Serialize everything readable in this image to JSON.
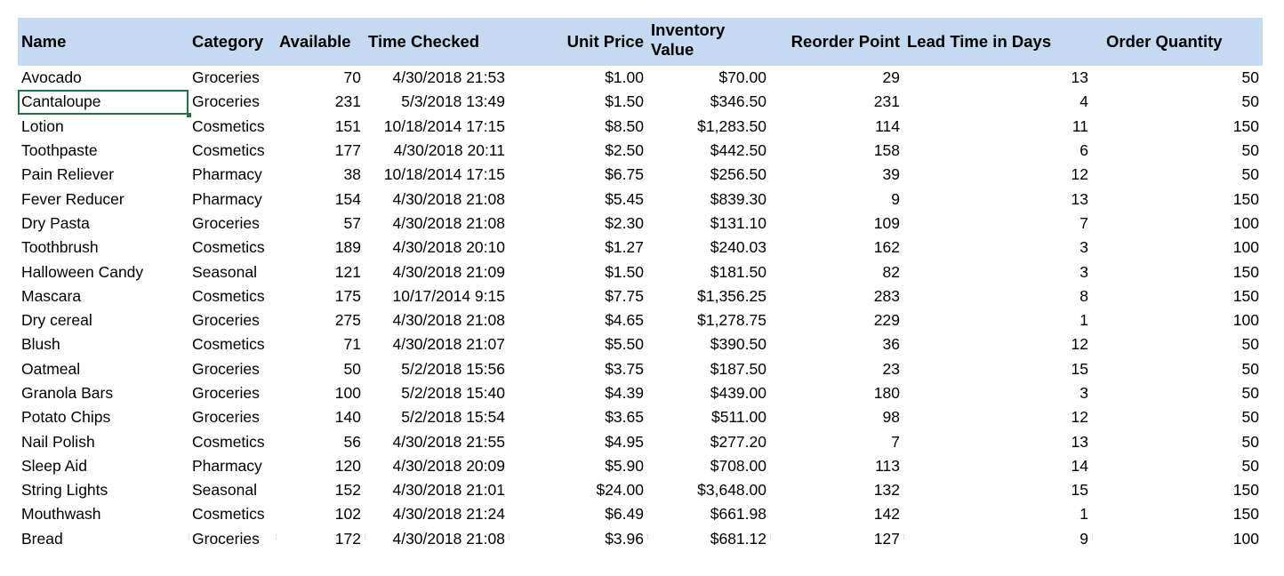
{
  "headers": {
    "name": "Name",
    "category": "Category",
    "available": "Available",
    "time_checked": "Time Checked",
    "unit_price": "Unit Price",
    "inventory_value": "Inventory Value",
    "reorder_point": "Reorder Point",
    "lead_time": "Lead Time in Days",
    "order_quantity": "Order Quantity"
  },
  "selected_cell": "Cantaloupe",
  "accent_color": "#217346",
  "header_color": "#c5d9f1",
  "rows": [
    {
      "name": "Avocado",
      "category": "Groceries",
      "available": "70",
      "time_checked": "4/30/2018 21:53",
      "unit_price": "$1.00",
      "inventory_value": "$70.00",
      "reorder_point": "29",
      "lead_time": "13",
      "order_quantity": "50"
    },
    {
      "name": "Cantaloupe",
      "category": "Groceries",
      "available": "231",
      "time_checked": "5/3/2018 13:49",
      "unit_price": "$1.50",
      "inventory_value": "$346.50",
      "reorder_point": "231",
      "lead_time": "4",
      "order_quantity": "50"
    },
    {
      "name": "Lotion",
      "category": "Cosmetics",
      "available": "151",
      "time_checked": "10/18/2014 17:15",
      "unit_price": "$8.50",
      "inventory_value": "$1,283.50",
      "reorder_point": "114",
      "lead_time": "11",
      "order_quantity": "150"
    },
    {
      "name": "Toothpaste",
      "category": "Cosmetics",
      "available": "177",
      "time_checked": "4/30/2018 20:11",
      "unit_price": "$2.50",
      "inventory_value": "$442.50",
      "reorder_point": "158",
      "lead_time": "6",
      "order_quantity": "50"
    },
    {
      "name": "Pain Reliever",
      "category": "Pharmacy",
      "available": "38",
      "time_checked": "10/18/2014 17:15",
      "unit_price": "$6.75",
      "inventory_value": "$256.50",
      "reorder_point": "39",
      "lead_time": "12",
      "order_quantity": "50"
    },
    {
      "name": "Fever Reducer",
      "category": "Pharmacy",
      "available": "154",
      "time_checked": "4/30/2018 21:08",
      "unit_price": "$5.45",
      "inventory_value": "$839.30",
      "reorder_point": "9",
      "lead_time": "13",
      "order_quantity": "150"
    },
    {
      "name": "Dry Pasta",
      "category": "Groceries",
      "available": "57",
      "time_checked": "4/30/2018 21:08",
      "unit_price": "$2.30",
      "inventory_value": "$131.10",
      "reorder_point": "109",
      "lead_time": "7",
      "order_quantity": "100"
    },
    {
      "name": "Toothbrush",
      "category": "Cosmetics",
      "available": "189",
      "time_checked": "4/30/2018 20:10",
      "unit_price": "$1.27",
      "inventory_value": "$240.03",
      "reorder_point": "162",
      "lead_time": "3",
      "order_quantity": "100"
    },
    {
      "name": "Halloween Candy",
      "category": "Seasonal",
      "available": "121",
      "time_checked": "4/30/2018 21:09",
      "unit_price": "$1.50",
      "inventory_value": "$181.50",
      "reorder_point": "82",
      "lead_time": "3",
      "order_quantity": "150"
    },
    {
      "name": "Mascara",
      "category": "Cosmetics",
      "available": "175",
      "time_checked": "10/17/2014 9:15",
      "unit_price": "$7.75",
      "inventory_value": "$1,356.25",
      "reorder_point": "283",
      "lead_time": "8",
      "order_quantity": "150"
    },
    {
      "name": "Dry cereal",
      "category": "Groceries",
      "available": "275",
      "time_checked": "4/30/2018 21:08",
      "unit_price": "$4.65",
      "inventory_value": "$1,278.75",
      "reorder_point": "229",
      "lead_time": "1",
      "order_quantity": "100"
    },
    {
      "name": "Blush",
      "category": "Cosmetics",
      "available": "71",
      "time_checked": "4/30/2018 21:07",
      "unit_price": "$5.50",
      "inventory_value": "$390.50",
      "reorder_point": "36",
      "lead_time": "12",
      "order_quantity": "50"
    },
    {
      "name": "Oatmeal",
      "category": "Groceries",
      "available": "50",
      "time_checked": "5/2/2018 15:56",
      "unit_price": "$3.75",
      "inventory_value": "$187.50",
      "reorder_point": "23",
      "lead_time": "15",
      "order_quantity": "50"
    },
    {
      "name": "Granola Bars",
      "category": "Groceries",
      "available": "100",
      "time_checked": "5/2/2018 15:40",
      "unit_price": "$4.39",
      "inventory_value": "$439.00",
      "reorder_point": "180",
      "lead_time": "3",
      "order_quantity": "50"
    },
    {
      "name": "Potato Chips",
      "category": "Groceries",
      "available": "140",
      "time_checked": "5/2/2018 15:54",
      "unit_price": "$3.65",
      "inventory_value": "$511.00",
      "reorder_point": "98",
      "lead_time": "12",
      "order_quantity": "50"
    },
    {
      "name": "Nail Polish",
      "category": "Cosmetics",
      "available": "56",
      "time_checked": "4/30/2018 21:55",
      "unit_price": "$4.95",
      "inventory_value": "$277.20",
      "reorder_point": "7",
      "lead_time": "13",
      "order_quantity": "50"
    },
    {
      "name": "Sleep Aid",
      "category": "Pharmacy",
      "available": "120",
      "time_checked": "4/30/2018 20:09",
      "unit_price": "$5.90",
      "inventory_value": "$708.00",
      "reorder_point": "113",
      "lead_time": "14",
      "order_quantity": "50"
    },
    {
      "name": "String Lights",
      "category": "Seasonal",
      "available": "152",
      "time_checked": "4/30/2018 21:01",
      "unit_price": "$24.00",
      "inventory_value": "$3,648.00",
      "reorder_point": "132",
      "lead_time": "15",
      "order_quantity": "150"
    },
    {
      "name": "Mouthwash",
      "category": "Cosmetics",
      "available": "102",
      "time_checked": "4/30/2018 21:24",
      "unit_price": "$6.49",
      "inventory_value": "$661.98",
      "reorder_point": "142",
      "lead_time": "1",
      "order_quantity": "150"
    },
    {
      "name": "Bread",
      "category": "Groceries",
      "available": "172",
      "time_checked": "4/30/2018 21:08",
      "unit_price": "$3.96",
      "inventory_value": "$681.12",
      "reorder_point": "127",
      "lead_time": "9",
      "order_quantity": "100"
    }
  ]
}
